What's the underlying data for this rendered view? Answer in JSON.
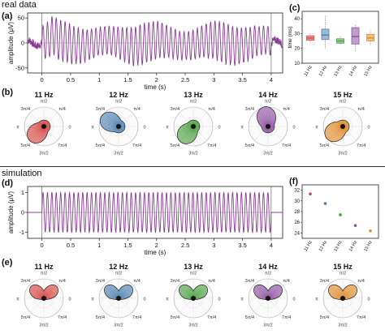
{
  "sections": {
    "real": "real data",
    "sim": "simulation"
  },
  "panel_labels": {
    "a": "(a)",
    "b": "(b)",
    "c": "(c)",
    "d": "(d)",
    "e": "(e)",
    "f": "(f)"
  },
  "polar_ticks": [
    "π/2",
    "π/4",
    "0",
    "7π/4",
    "3π/2",
    "5π/4",
    "π",
    "3π/4"
  ],
  "colors": {
    "wave": "#8b3a96",
    "f11": "#d64541",
    "f12": "#4f7fb0",
    "f13": "#4aa040",
    "f14": "#8e4fa0",
    "f15": "#e08a2a"
  },
  "chart_data": [
    {
      "id": "a",
      "type": "line",
      "title": "",
      "xlabel": "time (s)",
      "ylabel": "amplitude (μV)",
      "xlim": [
        -0.25,
        4.2
      ],
      "ylim": [
        -60,
        60
      ],
      "x_ticks": [
        "0",
        "0.5",
        "1",
        "1.5",
        "2",
        "2.5",
        "3",
        "3.5",
        "4"
      ],
      "y_ticks": [
        "50",
        "0",
        "-50"
      ],
      "series": [
        {
          "stimulus_on": 0,
          "stimulus_off": 4,
          "frequency_hz": 13,
          "amplitude": 40,
          "baseline_amplitude": 8
        }
      ]
    },
    {
      "id": "b",
      "type": "polar",
      "panels": [
        {
          "label": "11 Hz",
          "lobe": "bottom-left"
        },
        {
          "label": "12 Hz",
          "lobe": "top-left"
        },
        {
          "label": "13 Hz",
          "lobe": "bottom-left"
        },
        {
          "label": "14 Hz",
          "lobe": "top"
        },
        {
          "label": "15 Hz",
          "lobe": "bottom-left"
        }
      ]
    },
    {
      "id": "c",
      "type": "boxplot",
      "ylabel": "time (ms)",
      "ylim": [
        10,
        45
      ],
      "y_ticks": [
        "40",
        "30",
        "20",
        "10"
      ],
      "categories": [
        "11 Hz",
        "12 Hz",
        "13 Hz",
        "14 Hz",
        "15 Hz"
      ],
      "boxes": [
        {
          "q1": 25.5,
          "median": 27,
          "q3": 28.5,
          "min": 24,
          "max": 30
        },
        {
          "q1": 26,
          "median": 29,
          "q3": 33,
          "min": 20,
          "max": 42
        },
        {
          "q1": 23.5,
          "median": 25,
          "q3": 26.5,
          "min": 22,
          "max": 28
        },
        {
          "q1": 23,
          "median": 28,
          "q3": 34,
          "min": 18,
          "max": 36
        },
        {
          "q1": 25,
          "median": 27,
          "q3": 29.5,
          "min": 22,
          "max": 32
        }
      ]
    },
    {
      "id": "d",
      "type": "line",
      "title": "",
      "xlabel": "time (s)",
      "ylabel": "amplitude (μV)",
      "xlim": [
        -0.25,
        4.2
      ],
      "ylim": [
        -1.3,
        1.3
      ],
      "x_ticks": [
        "0",
        "0.5",
        "1",
        "1.5",
        "2",
        "2.5",
        "3",
        "3.5",
        "4"
      ],
      "y_ticks": [
        "1",
        "0",
        "-1"
      ],
      "series": [
        {
          "stimulus_on": 0,
          "stimulus_off": 4,
          "frequency_hz": 13,
          "amplitude": 1
        }
      ]
    },
    {
      "id": "e",
      "type": "polar",
      "panels": [
        {
          "label": "11 Hz"
        },
        {
          "label": "12 Hz"
        },
        {
          "label": "13 Hz"
        },
        {
          "label": "14 Hz"
        },
        {
          "label": "15 Hz"
        }
      ]
    },
    {
      "id": "f",
      "type": "scatter",
      "ylim": [
        23,
        33
      ],
      "y_ticks": [
        "32",
        "30",
        "28",
        "26",
        "24"
      ],
      "categories": [
        "11 Hz",
        "12 Hz",
        "13 Hz",
        "14 Hz",
        "15 Hz"
      ],
      "values": [
        31.3,
        29.5,
        27.4,
        25.4,
        24.4
      ]
    }
  ]
}
